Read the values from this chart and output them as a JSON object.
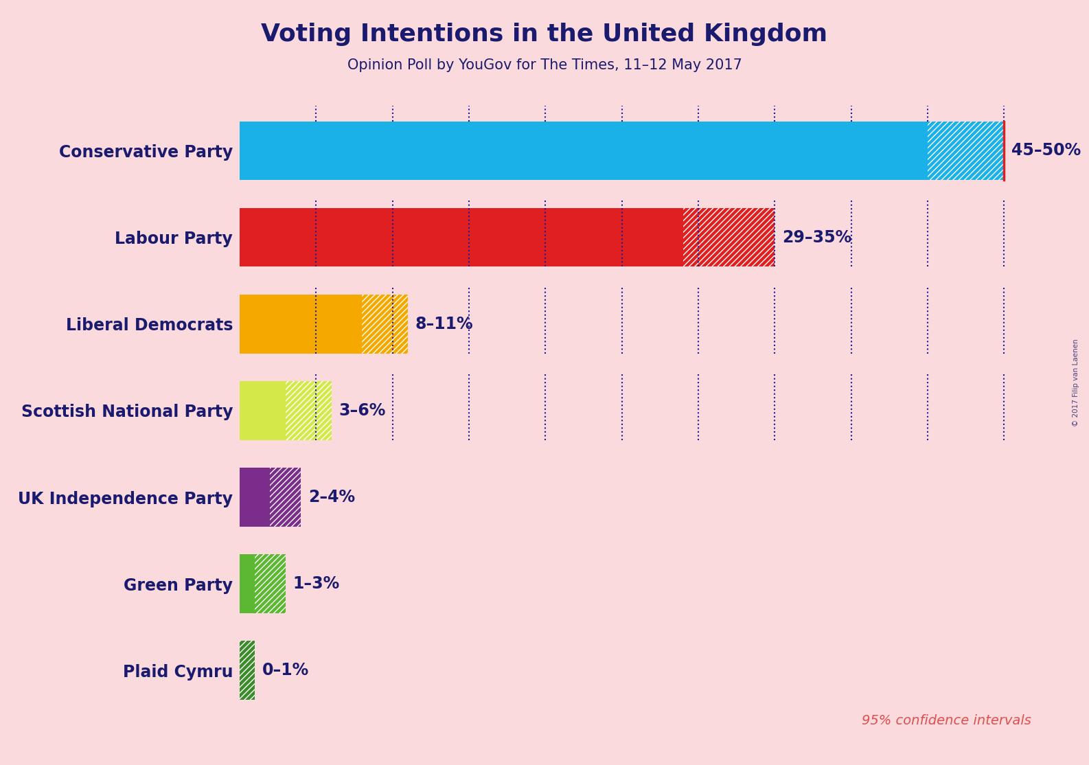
{
  "title": "Voting Intentions in the United Kingdom",
  "subtitle": "Opinion Poll by YouGov for The Times, 11–12 May 2017",
  "watermark": "© 2017 Filip van Laenen",
  "background_color": "#FADADD",
  "title_color": "#1a1a6e",
  "subtitle_color": "#1a1a6e",
  "label_color": "#1a1a6e",
  "parties": [
    "Conservative Party",
    "Labour Party",
    "Liberal Democrats",
    "Scottish National Party",
    "UK Independence Party",
    "Green Party",
    "Plaid Cymru"
  ],
  "low": [
    45,
    29,
    8,
    3,
    2,
    1,
    0
  ],
  "high": [
    50,
    35,
    11,
    6,
    4,
    3,
    1
  ],
  "labels": [
    "45–50%",
    "29–35%",
    "8–11%",
    "3–6%",
    "2–4%",
    "1–3%",
    "0–1%"
  ],
  "colors": [
    "#1ab0e8",
    "#e02020",
    "#f5a800",
    "#d4e84a",
    "#7b2d8b",
    "#5cb832",
    "#3a8c2a"
  ],
  "confidence_line_value": 50,
  "confidence_line_color": "#e02020",
  "dotted_line_color": "#1a1a9e",
  "x_max": 52,
  "tick_interval": 5,
  "bar_height": 0.68,
  "confidence_text": "95% confidence intervals",
  "confidence_text_color": "#e05050",
  "tick_values": [
    5,
    10,
    15,
    20,
    25,
    30,
    35,
    40,
    45,
    50
  ]
}
